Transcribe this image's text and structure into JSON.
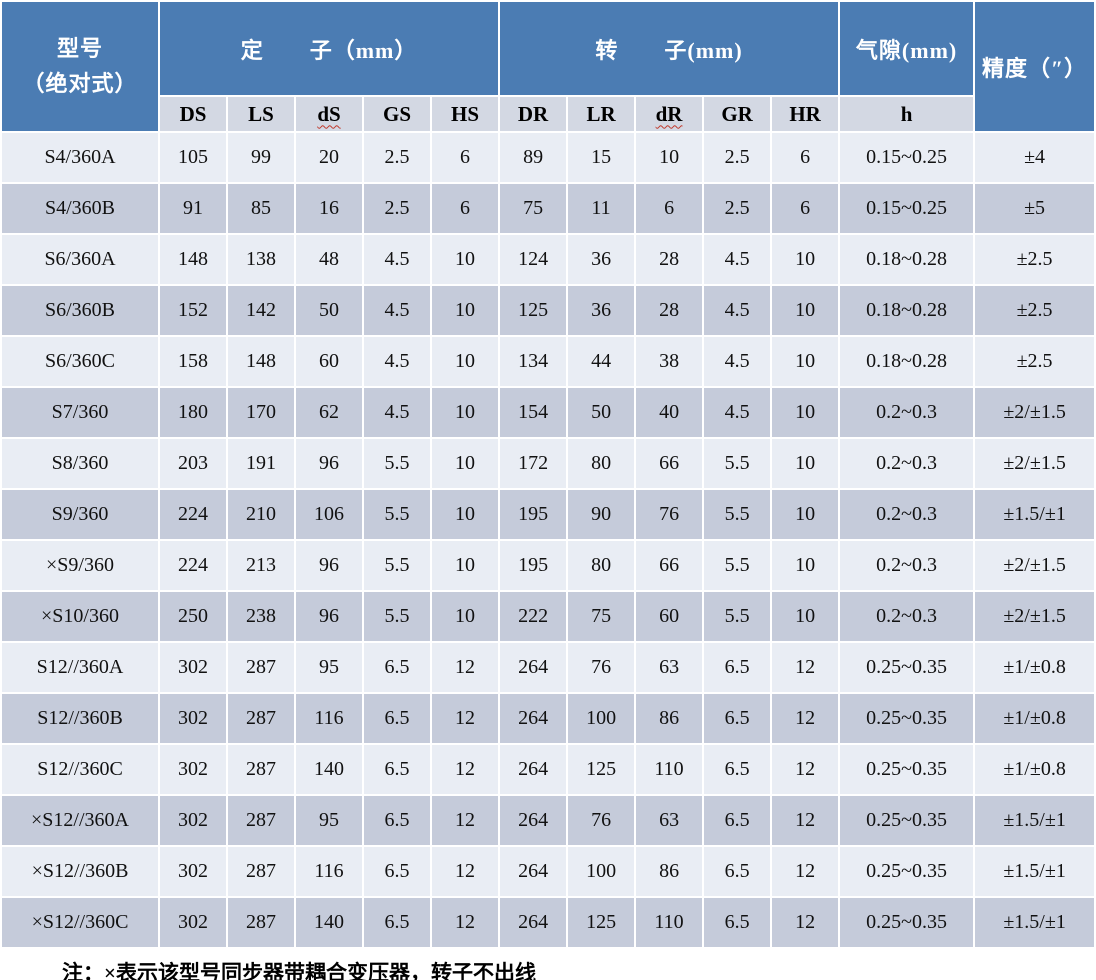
{
  "table": {
    "header": {
      "model_line1": "型号",
      "model_line2": "（绝对式）",
      "stator_label": "定　　子（mm）",
      "rotor_label": "转　　子(mm)",
      "airgap_label": "气隙(mm)",
      "accuracy_label": "精度（″）",
      "stator_cols": [
        "DS",
        "LS",
        "dS",
        "GS",
        "HS"
      ],
      "rotor_cols": [
        "DR",
        "LR",
        "dR",
        "GR",
        "HR"
      ],
      "airgap_col": "h",
      "wavy_underlined_cols": [
        "dS",
        "dR"
      ]
    },
    "rows": [
      {
        "model": "S4/360A",
        "values": [
          "105",
          "99",
          "20",
          "2.5",
          "6",
          "89",
          "15",
          "10",
          "2.5",
          "6",
          "0.15~0.25",
          "±4"
        ]
      },
      {
        "model": "S4/360B",
        "values": [
          "91",
          "85",
          "16",
          "2.5",
          "6",
          "75",
          "11",
          "6",
          "2.5",
          "6",
          "0.15~0.25",
          "±5"
        ]
      },
      {
        "model": "S6/360A",
        "values": [
          "148",
          "138",
          "48",
          "4.5",
          "10",
          "124",
          "36",
          "28",
          "4.5",
          "10",
          "0.18~0.28",
          "±2.5"
        ]
      },
      {
        "model": "S6/360B",
        "values": [
          "152",
          "142",
          "50",
          "4.5",
          "10",
          "125",
          "36",
          "28",
          "4.5",
          "10",
          "0.18~0.28",
          "±2.5"
        ]
      },
      {
        "model": "S6/360C",
        "values": [
          "158",
          "148",
          "60",
          "4.5",
          "10",
          "134",
          "44",
          "38",
          "4.5",
          "10",
          "0.18~0.28",
          "±2.5"
        ]
      },
      {
        "model": "S7/360",
        "values": [
          "180",
          "170",
          "62",
          "4.5",
          "10",
          "154",
          "50",
          "40",
          "4.5",
          "10",
          "0.2~0.3",
          "±2/±1.5"
        ]
      },
      {
        "model": "S8/360",
        "values": [
          "203",
          "191",
          "96",
          "5.5",
          "10",
          "172",
          "80",
          "66",
          "5.5",
          "10",
          "0.2~0.3",
          "±2/±1.5"
        ]
      },
      {
        "model": "S9/360",
        "values": [
          "224",
          "210",
          "106",
          "5.5",
          "10",
          "195",
          "90",
          "76",
          "5.5",
          "10",
          "0.2~0.3",
          "±1.5/±1"
        ]
      },
      {
        "model": "×S9/360",
        "values": [
          "224",
          "213",
          "96",
          "5.5",
          "10",
          "195",
          "80",
          "66",
          "5.5",
          "10",
          "0.2~0.3",
          "±2/±1.5"
        ]
      },
      {
        "model": "×S10/360",
        "values": [
          "250",
          "238",
          "96",
          "5.5",
          "10",
          "222",
          "75",
          "60",
          "5.5",
          "10",
          "0.2~0.3",
          "±2/±1.5"
        ]
      },
      {
        "model": "S12//360A",
        "values": [
          "302",
          "287",
          "95",
          "6.5",
          "12",
          "264",
          "76",
          "63",
          "6.5",
          "12",
          "0.25~0.35",
          "±1/±0.8"
        ]
      },
      {
        "model": "S12//360B",
        "values": [
          "302",
          "287",
          "116",
          "6.5",
          "12",
          "264",
          "100",
          "86",
          "6.5",
          "12",
          "0.25~0.35",
          "±1/±0.8"
        ]
      },
      {
        "model": "S12//360C",
        "values": [
          "302",
          "287",
          "140",
          "6.5",
          "12",
          "264",
          "125",
          "110",
          "6.5",
          "12",
          "0.25~0.35",
          "±1/±0.8"
        ]
      },
      {
        "model": "×S12//360A",
        "values": [
          "302",
          "287",
          "95",
          "6.5",
          "12",
          "264",
          "76",
          "63",
          "6.5",
          "12",
          "0.25~0.35",
          "±1.5/±1"
        ]
      },
      {
        "model": "×S12//360B",
        "values": [
          "302",
          "287",
          "116",
          "6.5",
          "12",
          "264",
          "100",
          "86",
          "6.5",
          "12",
          "0.25~0.35",
          "±1.5/±1"
        ]
      },
      {
        "model": "×S12//360C",
        "values": [
          "302",
          "287",
          "140",
          "6.5",
          "12",
          "264",
          "125",
          "110",
          "6.5",
          "12",
          "0.25~0.35",
          "±1.5/±1"
        ]
      }
    ]
  },
  "note": "注：×表示该型号同步器带耦合变压器，转子不出线",
  "colors": {
    "header_blue": "#4b7cb3",
    "subheader_bg": "#d3d8e3",
    "band_light": "#e9edf4",
    "band_dark": "#c5cbda",
    "grid_white": "#ffffff",
    "spellcheck_red": "#c0392b"
  }
}
